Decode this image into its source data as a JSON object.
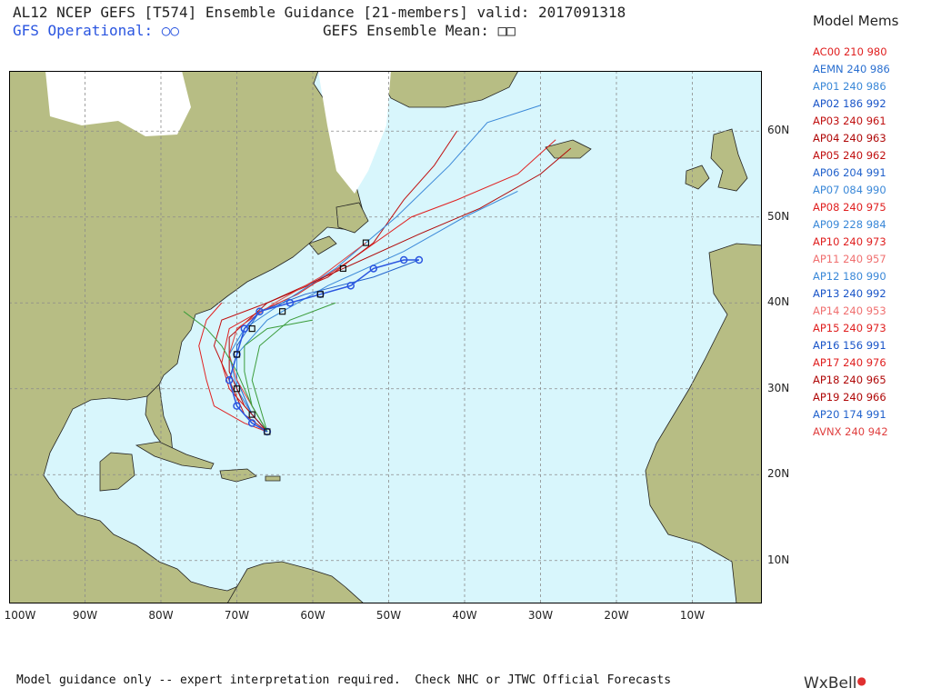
{
  "header": {
    "title": "AL12 NCEP GEFS [T574] Ensemble Guidance [21-members] valid: 2017091318",
    "gfs_operational": "GFS Operational: ○○",
    "ensemble_mean": "GEFS Ensemble Mean: □□"
  },
  "legend": {
    "title": "Model Mems",
    "items": [
      {
        "id": "AC00",
        "hours": "210",
        "pressure": "980",
        "color": "#e02020"
      },
      {
        "id": "AEMN",
        "hours": "240",
        "pressure": "986",
        "color": "#2a6fd0"
      },
      {
        "id": "AP01",
        "hours": "240",
        "pressure": "986",
        "color": "#3a88d8"
      },
      {
        "id": "AP02",
        "hours": "186",
        "pressure": "992",
        "color": "#1a55c8"
      },
      {
        "id": "AP03",
        "hours": "240",
        "pressure": "961",
        "color": "#c01010"
      },
      {
        "id": "AP04",
        "hours": "240",
        "pressure": "963",
        "color": "#b00808"
      },
      {
        "id": "AP05",
        "hours": "240",
        "pressure": "962",
        "color": "#c01010"
      },
      {
        "id": "AP06",
        "hours": "204",
        "pressure": "991",
        "color": "#2262cc"
      },
      {
        "id": "AP07",
        "hours": "084",
        "pressure": "990",
        "color": "#3a88d8"
      },
      {
        "id": "AP08",
        "hours": "240",
        "pressure": "975",
        "color": "#e02020"
      },
      {
        "id": "AP09",
        "hours": "228",
        "pressure": "984",
        "color": "#3a88d8"
      },
      {
        "id": "AP10",
        "hours": "240",
        "pressure": "973",
        "color": "#e02020"
      },
      {
        "id": "AP11",
        "hours": "240",
        "pressure": "957",
        "color": "#f07070"
      },
      {
        "id": "AP12",
        "hours": "180",
        "pressure": "990",
        "color": "#3a88d8"
      },
      {
        "id": "AP13",
        "hours": "240",
        "pressure": "992",
        "color": "#1a55c8"
      },
      {
        "id": "AP14",
        "hours": "240",
        "pressure": "953",
        "color": "#f07070"
      },
      {
        "id": "AP15",
        "hours": "240",
        "pressure": "973",
        "color": "#e02020"
      },
      {
        "id": "AP16",
        "hours": "156",
        "pressure": "991",
        "color": "#1a55c8"
      },
      {
        "id": "AP17",
        "hours": "240",
        "pressure": "976",
        "color": "#e02020"
      },
      {
        "id": "AP18",
        "hours": "240",
        "pressure": "965",
        "color": "#b00808"
      },
      {
        "id": "AP19",
        "hours": "240",
        "pressure": "966",
        "color": "#b00808"
      },
      {
        "id": "AP20",
        "hours": "174",
        "pressure": "991",
        "color": "#2262cc"
      },
      {
        "id": "AVNX",
        "hours": "240",
        "pressure": "942",
        "color": "#e04040"
      }
    ]
  },
  "map": {
    "lat_labels": [
      "60N",
      "50N",
      "40N",
      "30N",
      "20N",
      "10N"
    ],
    "lon_labels": [
      "100W",
      "90W",
      "80W",
      "70W",
      "60W",
      "50W",
      "40W",
      "30W",
      "20W",
      "10W"
    ],
    "colors": {
      "ocean": "#d8f6fc",
      "land": "#b7bd84",
      "ice": "#ffffff",
      "grid": "#8a8a8a"
    }
  },
  "footer": {
    "disclaimer": "Model guidance only -- expert interpretation required.  Check NHC or JTWC Official Forecasts",
    "logo": "WxBell"
  }
}
